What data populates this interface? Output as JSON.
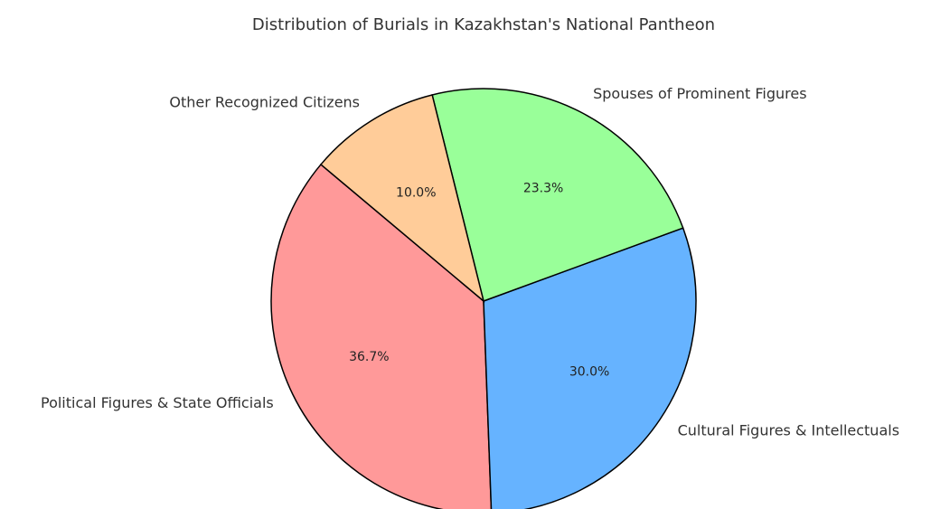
{
  "chart_data": {
    "type": "pie",
    "title": "Distribution of Burials in Kazakhstan's National Pantheon",
    "categories": [
      "Political Figures & State Officials",
      "Cultural Figures & Intellectuals",
      "Spouses of Prominent Figures",
      "Other Recognized Citizens"
    ],
    "values": [
      36.7,
      30.0,
      23.3,
      10.0
    ],
    "value_labels": [
      "36.7%",
      "30.0%",
      "23.3%",
      "10.0%"
    ],
    "colors": [
      "#ff9999",
      "#66b3ff",
      "#99ff99",
      "#ffcc99"
    ]
  }
}
